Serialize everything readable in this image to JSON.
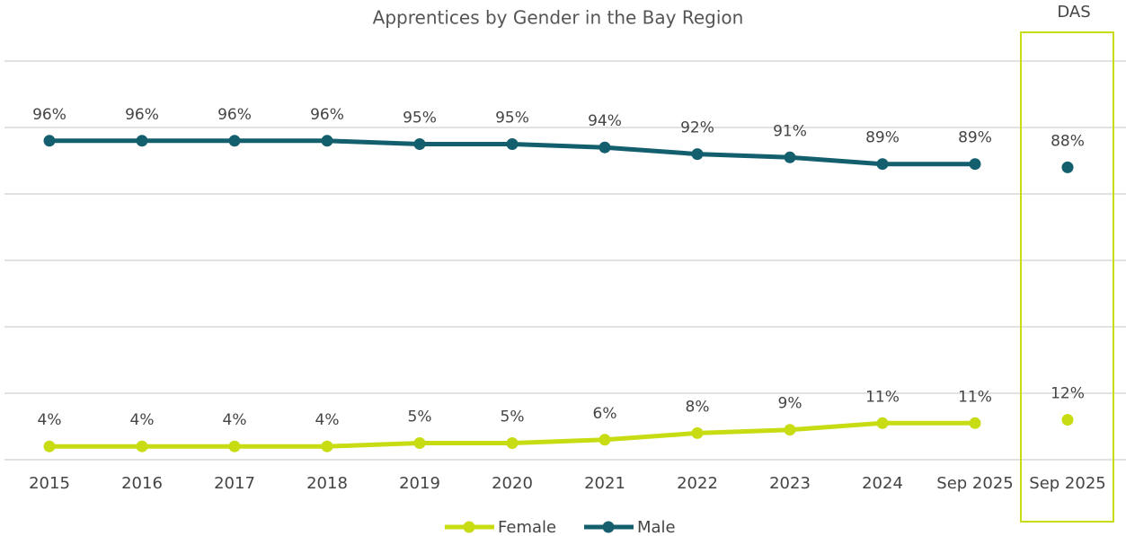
{
  "chart_data": {
    "type": "line",
    "title": "Apprentices by Gender in the Bay Region",
    "categories": [
      "2015",
      "2016",
      "2017",
      "2018",
      "2019",
      "2020",
      "2021",
      "2022",
      "2023",
      "2024",
      "Sep 2025",
      "Sep 2025"
    ],
    "series": [
      {
        "name": "Female",
        "color": "#c8dc14",
        "values": [
          4,
          4,
          4,
          4,
          5,
          5,
          6,
          8,
          9,
          11,
          11,
          12
        ],
        "value_labels": [
          "4%",
          "4%",
          "4%",
          "4%",
          "5%",
          "5%",
          "6%",
          "8%",
          "9%",
          "11%",
          "11%",
          "12%"
        ]
      },
      {
        "name": "Male",
        "color": "#145f6e",
        "values": [
          96,
          96,
          96,
          96,
          95,
          95,
          94,
          92,
          91,
          89,
          89,
          88
        ],
        "value_labels": [
          "96%",
          "96%",
          "96%",
          "96%",
          "95%",
          "95%",
          "94%",
          "92%",
          "91%",
          "89%",
          "89%",
          "88%"
        ]
      }
    ],
    "highlight": {
      "label": "DAS",
      "index": 11
    },
    "ylim": [
      0,
      120
    ],
    "yticks": [
      0,
      20,
      40,
      60,
      80,
      100,
      120
    ],
    "grid": true,
    "legend": "bottom"
  }
}
